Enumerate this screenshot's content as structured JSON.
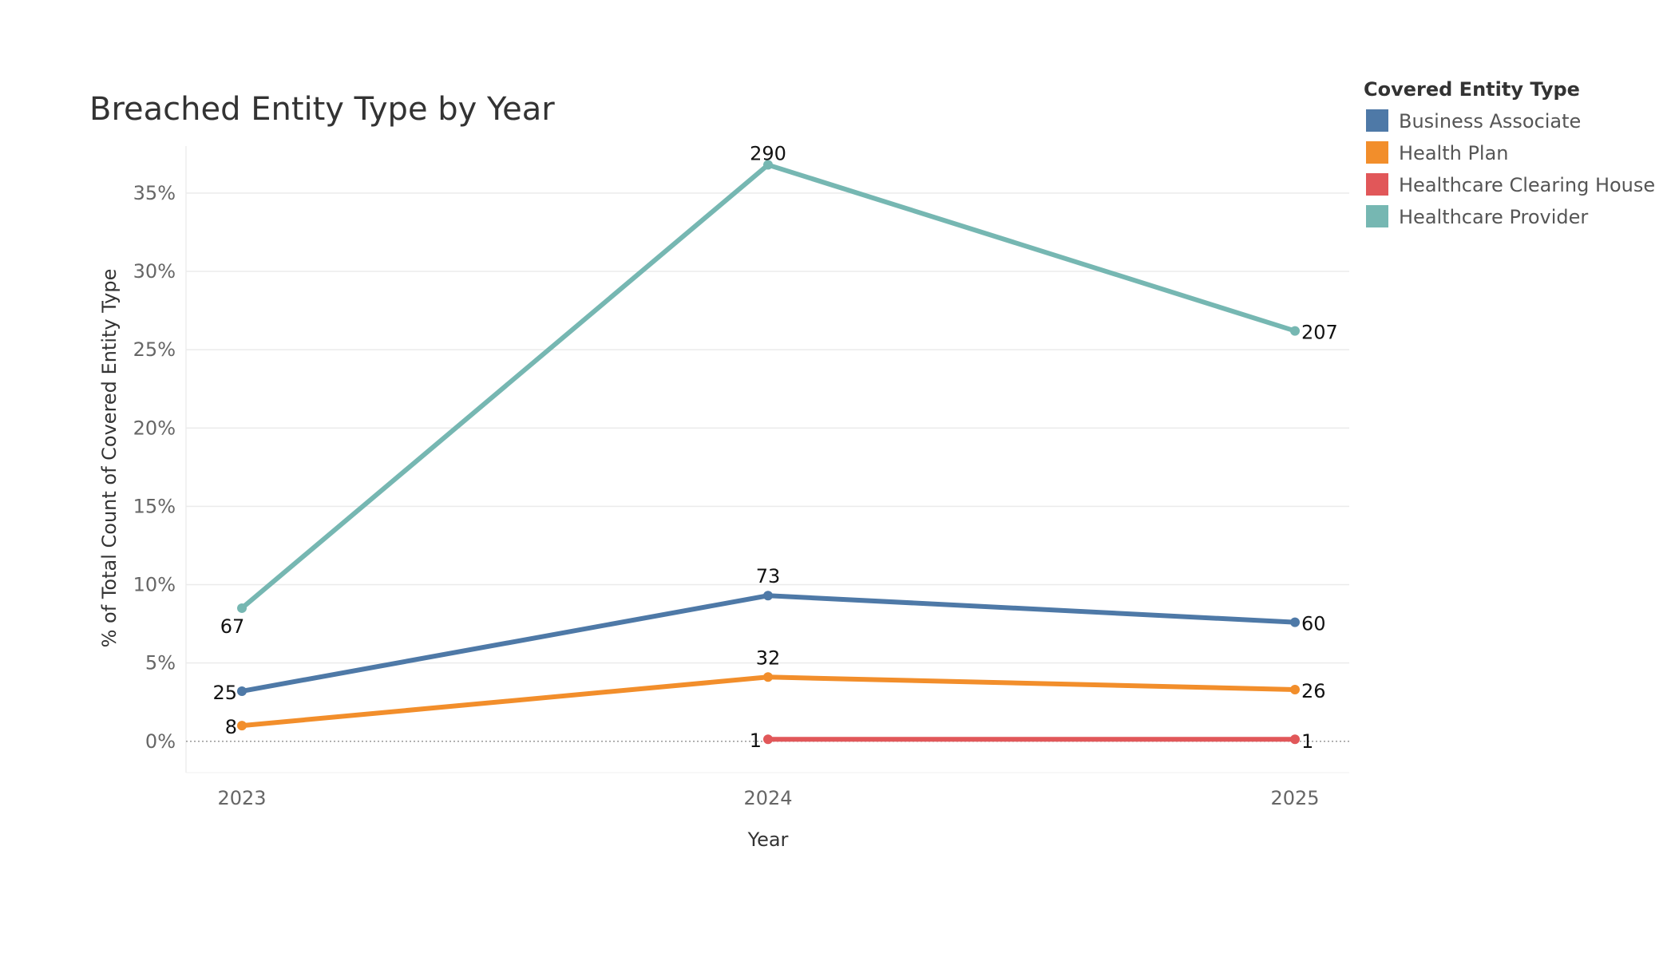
{
  "chart_data": {
    "type": "line",
    "title": "Breached Entity Type by Year",
    "xlabel": "Year",
    "ylabel": "% of Total Count of Covered Entity Type",
    "x": [
      "2023",
      "2024",
      "2025"
    ],
    "y_ticks": [
      "0%",
      "5%",
      "10%",
      "15%",
      "20%",
      "25%",
      "30%",
      "35%"
    ],
    "y_tick_values": [
      0,
      5,
      10,
      15,
      20,
      25,
      30,
      35
    ],
    "ylim": [
      -2,
      38
    ],
    "grid": true,
    "legend": {
      "title": "Covered Entity Type",
      "placement": "right",
      "items": [
        {
          "label": "Business Associate",
          "color": "#4e79a7"
        },
        {
          "label": "Health Plan",
          "color": "#f28e2b"
        },
        {
          "label": "Healthcare Clearing House",
          "color": "#e15759"
        },
        {
          "label": "Healthcare Provider",
          "color": "#76b7b2"
        }
      ]
    },
    "series": [
      {
        "name": "Healthcare Provider",
        "color": "#76b7b2",
        "x": [
          "2023",
          "2024",
          "2025"
        ],
        "values": [
          8.5,
          36.8,
          26.2
        ],
        "labels": [
          "67",
          "290",
          "207"
        ]
      },
      {
        "name": "Business Associate",
        "color": "#4e79a7",
        "x": [
          "2023",
          "2024",
          "2025"
        ],
        "values": [
          3.2,
          9.3,
          7.6
        ],
        "labels": [
          "25",
          "73",
          "60"
        ]
      },
      {
        "name": "Health Plan",
        "color": "#f28e2b",
        "x": [
          "2023",
          "2024",
          "2025"
        ],
        "values": [
          1.0,
          4.1,
          3.3
        ],
        "labels": [
          "8",
          "32",
          "26"
        ]
      },
      {
        "name": "Healthcare Clearing House",
        "color": "#e15759",
        "x": [
          "2024",
          "2025"
        ],
        "values": [
          0.13,
          0.13
        ],
        "labels": [
          "1",
          "1"
        ]
      }
    ]
  }
}
